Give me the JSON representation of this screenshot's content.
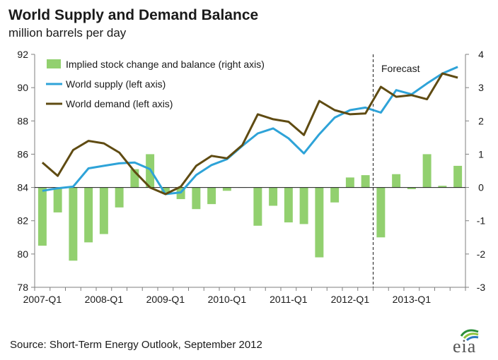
{
  "chart_data": {
    "type": "bar+line",
    "title": "World Supply and Demand  Balance",
    "subtitle": "million barrels per day",
    "source": "Short-Term Energy Outlook, September 2012",
    "annotation": "Forecast",
    "forecast_start_quarter": "2012-Q3",
    "x_tick_labels": [
      "2007-Q1",
      "2008-Q1",
      "2009-Q1",
      "2010-Q1",
      "2011-Q1",
      "2012-Q1",
      "2013-Q1"
    ],
    "quarters": [
      "2007-Q1",
      "2007-Q2",
      "2007-Q3",
      "2007-Q4",
      "2008-Q1",
      "2008-Q2",
      "2008-Q3",
      "2008-Q4",
      "2009-Q1",
      "2009-Q2",
      "2009-Q3",
      "2009-Q4",
      "2010-Q1",
      "2010-Q2",
      "2010-Q3",
      "2010-Q4",
      "2011-Q1",
      "2011-Q2",
      "2011-Q3",
      "2011-Q4",
      "2012-Q1",
      "2012-Q2",
      "2012-Q3",
      "2012-Q4",
      "2013-Q1",
      "2013-Q2",
      "2013-Q3",
      "2013-Q4"
    ],
    "left_axis": {
      "min": 78,
      "max": 92,
      "ticks": [
        78,
        80,
        82,
        84,
        86,
        88,
        90,
        92
      ]
    },
    "right_axis": {
      "min": -3,
      "max": 4,
      "ticks": [
        -3,
        -2,
        -1,
        0,
        1,
        2,
        3,
        4
      ]
    },
    "legend_position": "top-left",
    "grid": false,
    "series": [
      {
        "name": "Implied stock change and balance (right axis)",
        "type": "bar",
        "axis": "right",
        "color": "#92d06f",
        "values": [
          -1.75,
          -0.75,
          -2.2,
          -1.65,
          -1.4,
          -0.6,
          0.55,
          1.0,
          -0.15,
          -0.35,
          -0.65,
          -0.5,
          -0.1,
          0.0,
          -1.15,
          -0.55,
          -1.05,
          -1.1,
          -2.1,
          -0.45,
          0.3,
          0.37,
          -1.5,
          0.4,
          -0.05,
          1.0,
          0.05,
          0.65
        ]
      },
      {
        "name": "World supply (left axis)",
        "type": "line",
        "axis": "left",
        "color": "#2ea3d8",
        "values": [
          83.8,
          83.95,
          84.05,
          85.15,
          85.3,
          85.45,
          85.5,
          85.1,
          83.6,
          83.7,
          84.75,
          85.35,
          85.7,
          86.5,
          87.25,
          87.55,
          86.95,
          86.05,
          87.2,
          88.2,
          88.65,
          88.8,
          88.5,
          89.85,
          89.6,
          90.25,
          90.85,
          91.25
        ]
      },
      {
        "name": "World demand (left axis)",
        "type": "line",
        "axis": "left",
        "color": "#5f4b12",
        "values": [
          85.5,
          84.7,
          86.25,
          86.8,
          86.65,
          86.1,
          84.95,
          84.0,
          83.6,
          84.05,
          85.3,
          85.9,
          85.75,
          86.55,
          88.4,
          88.1,
          87.95,
          87.15,
          89.2,
          88.65,
          88.4,
          88.45,
          90.05,
          89.45,
          89.55,
          89.3,
          90.85,
          90.6
        ]
      }
    ]
  },
  "logo": {
    "text": "eia",
    "arc_colors": [
      "#2a8f3a",
      "#8fc53f",
      "#2b7bbf"
    ]
  }
}
